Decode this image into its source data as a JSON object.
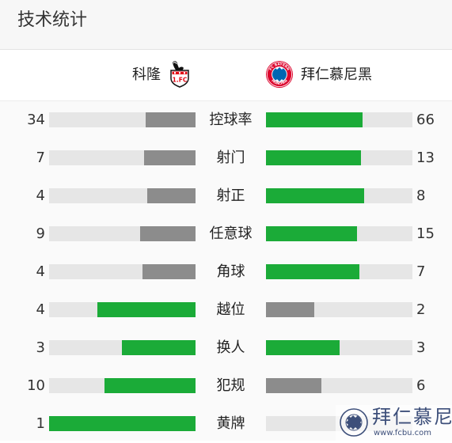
{
  "header": {
    "title": "技术统计"
  },
  "teams": {
    "home": {
      "name": "科隆",
      "crest_icon": "fc-koln-crest-icon",
      "crest_colors": {
        "primary": "#e30613",
        "secondary": "#ffffff",
        "outline": "#111111"
      }
    },
    "away": {
      "name": "拜仁慕尼黑",
      "crest_icon": "fc-bayern-crest-icon",
      "crest_colors": {
        "primary": "#dc052d",
        "secondary": "#0066b2",
        "outline": "#ffffff"
      }
    }
  },
  "colors": {
    "leader_fill": "#1bab38",
    "trailer_fill": "#8c8c8c",
    "track": "#e6e6e6"
  },
  "stats": [
    {
      "label": "控球率",
      "home": 34,
      "away": 66,
      "home_share": 0.34,
      "away_share": 0.66,
      "home_color": "#8c8c8c",
      "away_color": "#1bab38"
    },
    {
      "label": "射门",
      "home": 7,
      "away": 13,
      "home_share": 0.35,
      "away_share": 0.65,
      "home_color": "#8c8c8c",
      "away_color": "#1bab38"
    },
    {
      "label": "射正",
      "home": 4,
      "away": 8,
      "home_share": 0.33,
      "away_share": 0.67,
      "home_color": "#8c8c8c",
      "away_color": "#1bab38"
    },
    {
      "label": "任意球",
      "home": 9,
      "away": 15,
      "home_share": 0.38,
      "away_share": 0.62,
      "home_color": "#8c8c8c",
      "away_color": "#1bab38"
    },
    {
      "label": "角球",
      "home": 4,
      "away": 7,
      "home_share": 0.36,
      "away_share": 0.64,
      "home_color": "#8c8c8c",
      "away_color": "#1bab38"
    },
    {
      "label": "越位",
      "home": 4,
      "away": 2,
      "home_share": 0.67,
      "away_share": 0.33,
      "home_color": "#1bab38",
      "away_color": "#8c8c8c"
    },
    {
      "label": "换人",
      "home": 3,
      "away": 3,
      "home_share": 0.5,
      "away_share": 0.5,
      "home_color": "#1bab38",
      "away_color": "#1bab38"
    },
    {
      "label": "犯规",
      "home": 10,
      "away": 6,
      "home_share": 0.62,
      "away_share": 0.38,
      "home_color": "#1bab38",
      "away_color": "#8c8c8c"
    },
    {
      "label": "黄牌",
      "home": 1,
      "away": "",
      "home_share": 1.0,
      "away_share": 0.0,
      "home_color": "#1bab38",
      "away_color": "#8c8c8c"
    }
  ],
  "watermark": {
    "text": "拜仁慕尼",
    "url": "www.fcbu.com",
    "badge_icon": "fc-bayern-fan-club-badge-icon"
  }
}
